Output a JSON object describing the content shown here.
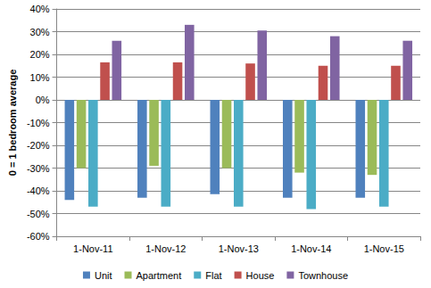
{
  "chart_data": {
    "type": "bar",
    "y_label": "0 = 1 bedroom average",
    "categories": [
      "1-Nov-11",
      "1-Nov-12",
      "1-Nov-13",
      "1-Nov-14",
      "1-Nov-15"
    ],
    "series": [
      {
        "name": "Unit",
        "color": "#4F81BD",
        "values": [
          -44,
          -43,
          -41.5,
          -43,
          -43
        ]
      },
      {
        "name": "Apartment",
        "color": "#9BBB59",
        "values": [
          -30,
          -29,
          -30,
          -32,
          -33
        ]
      },
      {
        "name": "Flat",
        "color": "#4BACC6",
        "values": [
          -47,
          -47,
          -47,
          -48,
          -47
        ]
      },
      {
        "name": "House",
        "color": "#C0504D",
        "values": [
          16.5,
          16.5,
          16,
          15,
          15
        ]
      },
      {
        "name": "Townhouse",
        "color": "#8064A2",
        "values": [
          26,
          33,
          30.5,
          28,
          26
        ]
      }
    ],
    "ylim": [
      -60,
      40
    ],
    "yticks": [
      {
        "value": -60,
        "label": "-60%"
      },
      {
        "value": -50,
        "label": "-50%"
      },
      {
        "value": -40,
        "label": "-40%"
      },
      {
        "value": -30,
        "label": "-30%"
      },
      {
        "value": -20,
        "label": "-20%"
      },
      {
        "value": -10,
        "label": "-10%"
      },
      {
        "value": 0,
        "label": "0%"
      },
      {
        "value": 10,
        "label": "10%"
      },
      {
        "value": 20,
        "label": "20%"
      },
      {
        "value": 30,
        "label": "30%"
      },
      {
        "value": 40,
        "label": "40%"
      }
    ],
    "grid": true,
    "legend": "bottom"
  }
}
